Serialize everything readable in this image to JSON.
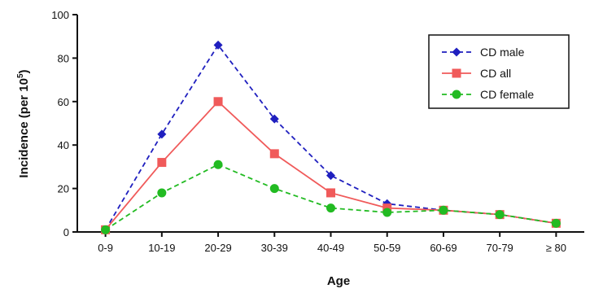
{
  "chart_data": {
    "type": "line",
    "categories": [
      "0-9",
      "10-19",
      "20-29",
      "30-39",
      "40-49",
      "50-59",
      "60-69",
      "70-79",
      "≥ 80"
    ],
    "ylim": [
      0,
      100
    ],
    "yticks": [
      0,
      20,
      40,
      60,
      80,
      100
    ],
    "xlabel": "Age",
    "ylabel_main": "Incidence (per 10",
    "ylabel_sup": "5",
    "ylabel_end": ")",
    "grid": false,
    "legend_position": "top-right",
    "series": [
      {
        "name": "CD male",
        "color": "#1f1fbf",
        "marker": "diamond",
        "line": "dashed",
        "values": [
          1,
          45,
          86,
          52,
          26,
          13,
          10,
          8,
          4
        ]
      },
      {
        "name": "CD all",
        "color": "#f05a5a",
        "marker": "square",
        "line": "solid",
        "values": [
          1,
          32,
          60,
          36,
          18,
          11,
          10,
          8,
          4
        ]
      },
      {
        "name": "CD female",
        "color": "#22bb22",
        "marker": "circle",
        "line": "dashed",
        "values": [
          1,
          18,
          31,
          20,
          11,
          9,
          10,
          8,
          4
        ]
      }
    ]
  }
}
